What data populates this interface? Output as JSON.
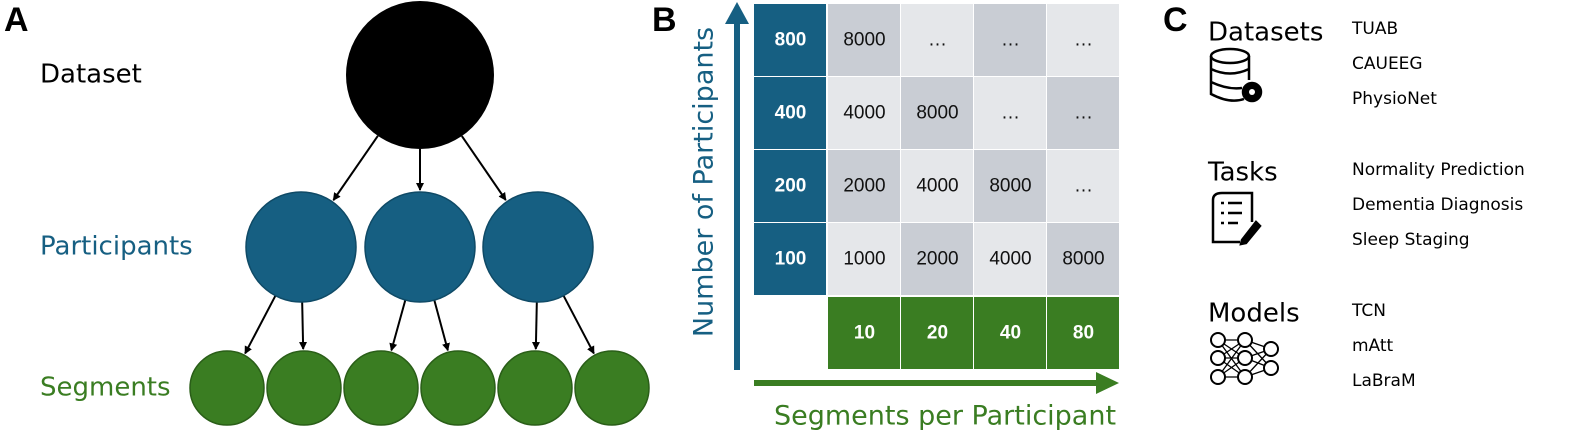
{
  "panels": {
    "a": {
      "label": "A",
      "levels": [
        "Dataset",
        "Participants",
        "Segments"
      ]
    },
    "b": {
      "label": "B",
      "y_axis": "Number of Participants",
      "x_axis": "Segments per Participant",
      "row_headers": [
        800,
        400,
        200,
        100
      ],
      "col_headers": [
        10,
        20,
        40,
        80
      ],
      "cells": [
        [
          8000,
          "…",
          "…",
          "…"
        ],
        [
          4000,
          8000,
          "…",
          "…"
        ],
        [
          2000,
          4000,
          8000,
          "…"
        ],
        [
          1000,
          2000,
          4000,
          8000
        ]
      ]
    },
    "c": {
      "label": "C",
      "groups": [
        {
          "title": "Datasets",
          "items": [
            "TUAB",
            "CAUEEG",
            "PhysioNet"
          ]
        },
        {
          "title": "Tasks",
          "items": [
            "Normality Prediction",
            "Dementia Diagnosis",
            "Sleep Staging"
          ]
        },
        {
          "title": "Models",
          "items": [
            "TCN",
            "mAtt",
            "LaBraM"
          ]
        }
      ]
    }
  }
}
